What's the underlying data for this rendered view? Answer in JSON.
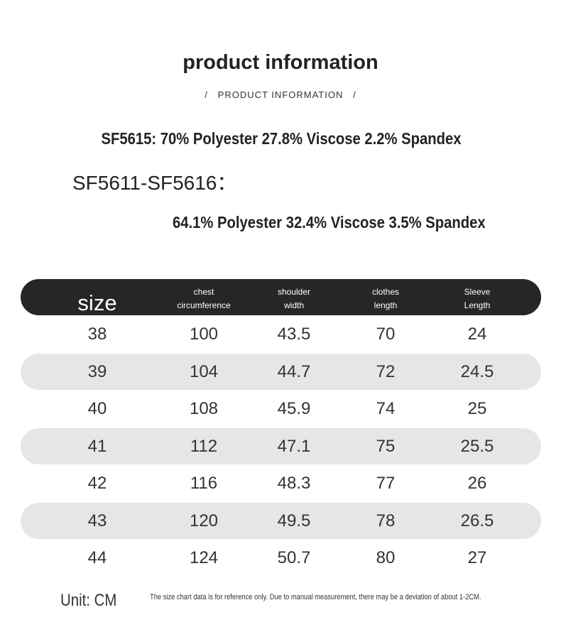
{
  "header": {
    "title": "product information",
    "subtitle": "/   PRODUCT INFORMATION   /"
  },
  "composition": [
    "SF5615: 70% Polyester 27.8% Viscose 2.2% Spandex",
    "SF5611-SF5616：",
    "64.1% Polyester 32.4% Viscose 3.5% Spandex"
  ],
  "table": {
    "columns": [
      [
        "size"
      ],
      [
        "chest",
        "circumference"
      ],
      [
        "shoulder",
        "width"
      ],
      [
        "clothes",
        "length"
      ],
      [
        "Sleeve",
        "Length"
      ]
    ],
    "rows": [
      [
        "38",
        "100",
        "43.5",
        "70",
        "24"
      ],
      [
        "39",
        "104",
        "44.7",
        "72",
        "24.5"
      ],
      [
        "40",
        "108",
        "45.9",
        "74",
        "25"
      ],
      [
        "41",
        "112",
        "47.1",
        "75",
        "25.5"
      ],
      [
        "42",
        "116",
        "48.3",
        "77",
        "26"
      ],
      [
        "43",
        "120",
        "49.5",
        "78",
        "26.5"
      ],
      [
        "44",
        "124",
        "50.7",
        "80",
        "27"
      ]
    ]
  },
  "footer": {
    "unit": "Unit: CM",
    "note": "The size chart data is for reference only. Due to manual measurement, there may be a deviation of about 1-2CM."
  }
}
